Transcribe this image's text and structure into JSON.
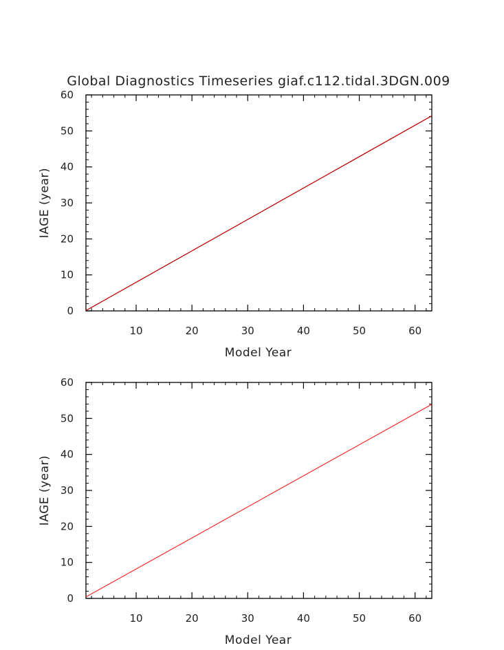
{
  "title": "Global Diagnostics Timeseries giaf.c112.tidal.3DGN.009",
  "chart_data": [
    {
      "type": "line",
      "title": "Global Diagnostics Timeseries giaf.c112.tidal.3DGN.009",
      "xlabel": "Model Year",
      "ylabel": "IAGE (year)",
      "xlim": [
        1,
        63
      ],
      "ylim": [
        0,
        60
      ],
      "xticks": [
        10,
        20,
        30,
        40,
        50,
        60
      ],
      "yticks": [
        0,
        10,
        20,
        30,
        40,
        50,
        60
      ],
      "grid": false,
      "series": [
        {
          "color": "#000000",
          "x": [
            1,
            63
          ],
          "y": [
            0.1,
            54.2
          ]
        },
        {
          "color": "#d40000",
          "x": [
            1,
            63
          ],
          "y": [
            0.1,
            54.2
          ]
        }
      ]
    },
    {
      "type": "line",
      "title": "",
      "xlabel": "Model Year",
      "ylabel": "IAGE (year)",
      "xlim": [
        1,
        63
      ],
      "ylim": [
        0,
        60
      ],
      "xticks": [
        10,
        20,
        30,
        40,
        50,
        60
      ],
      "yticks": [
        0,
        10,
        20,
        30,
        40,
        50,
        60
      ],
      "grid": false,
      "series": [
        {
          "color": "#ff1a1a",
          "x": [
            1,
            63
          ],
          "y": [
            0.4,
            53.9
          ]
        }
      ]
    }
  ]
}
